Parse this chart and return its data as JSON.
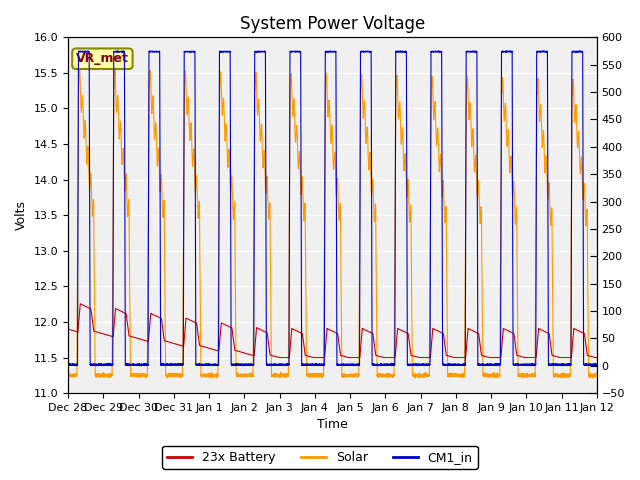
{
  "title": "System Power Voltage",
  "xlabel": "Time",
  "ylabel": "Volts",
  "ylim_left": [
    11.0,
    16.0
  ],
  "ylim_right": [
    -50,
    600
  ],
  "yticks_left": [
    11.0,
    11.5,
    12.0,
    12.5,
    13.0,
    13.5,
    14.0,
    14.5,
    15.0,
    15.5,
    16.0
  ],
  "yticks_right": [
    -50,
    0,
    50,
    100,
    150,
    200,
    250,
    300,
    350,
    400,
    450,
    500,
    550,
    600
  ],
  "xtick_labels": [
    "Dec 28",
    "Dec 29",
    "Dec 30",
    "Dec 31",
    "Jan 1",
    "Jan 2",
    "Jan 3",
    "Jan 4",
    "Jan 5",
    "Jan 6",
    "Jan 7",
    "Jan 8",
    "Jan 9",
    "Jan 10",
    "Jan 11",
    "Jan 12"
  ],
  "annotation_text": "VR_met",
  "legend_labels": [
    "23x Battery",
    "Solar",
    "CM1_in"
  ],
  "legend_colors": [
    "#cc0000",
    "#ff9900",
    "#0000cc"
  ],
  "line_colors": [
    "#cc0000",
    "#ff9900",
    "#0000cc"
  ],
  "background_color": "#ffffff",
  "grid_color": "#d0d0d0",
  "title_fontsize": 12,
  "axis_fontsize": 9,
  "tick_fontsize": 8
}
